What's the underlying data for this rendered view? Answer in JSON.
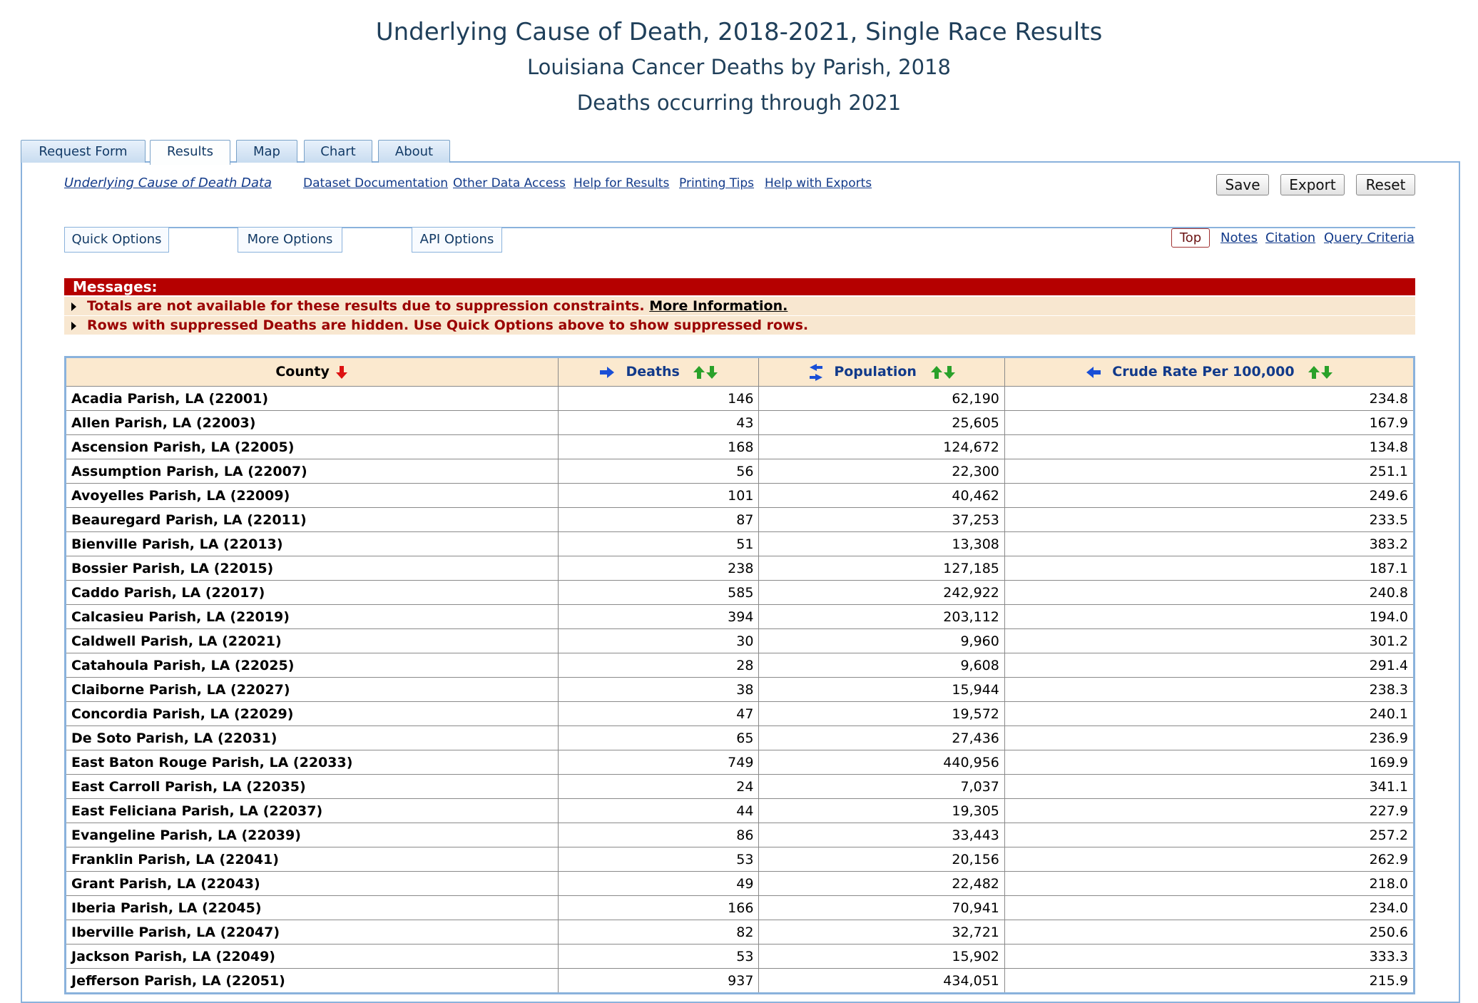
{
  "header": {
    "title": "Underlying Cause of Death, 2018-2021, Single Race Results",
    "subtitle": "Louisiana Cancer Deaths by Parish, 2018",
    "subtitle2": "Deaths occurring through 2021"
  },
  "tabs": [
    "Request Form",
    "Results",
    "Map",
    "Chart",
    "About"
  ],
  "active_tab": "Results",
  "links": {
    "data": "Underlying Cause of Death Data",
    "dataset_doc": "Dataset Documentation",
    "other_access": "Other Data Access",
    "help_results": "Help for Results",
    "printing": "Printing Tips",
    "help_exports": "Help with Exports"
  },
  "buttons": {
    "save": "Save",
    "export": "Export",
    "reset": "Reset"
  },
  "options": {
    "quick": "Quick Options",
    "more": "More Options",
    "api": "API Options"
  },
  "nav": {
    "top": "Top",
    "notes": "Notes",
    "citation": "Citation",
    "query": "Query Criteria"
  },
  "messages": {
    "header": "Messages:",
    "msg1": "Totals are not available for these results due to suppression constraints.",
    "msg1_link": "More Information.",
    "msg2": "Rows with suppressed Deaths are hidden. Use Quick Options above to show suppressed rows."
  },
  "table": {
    "columns": [
      "County",
      "Deaths",
      "Population",
      "Crude Rate Per 100,000"
    ],
    "rows": [
      [
        "Acadia Parish, LA (22001)",
        "146",
        "62,190",
        "234.8"
      ],
      [
        "Allen Parish, LA (22003)",
        "43",
        "25,605",
        "167.9"
      ],
      [
        "Ascension Parish, LA (22005)",
        "168",
        "124,672",
        "134.8"
      ],
      [
        "Assumption Parish, LA (22007)",
        "56",
        "22,300",
        "251.1"
      ],
      [
        "Avoyelles Parish, LA (22009)",
        "101",
        "40,462",
        "249.6"
      ],
      [
        "Beauregard Parish, LA (22011)",
        "87",
        "37,253",
        "233.5"
      ],
      [
        "Bienville Parish, LA (22013)",
        "51",
        "13,308",
        "383.2"
      ],
      [
        "Bossier Parish, LA (22015)",
        "238",
        "127,185",
        "187.1"
      ],
      [
        "Caddo Parish, LA (22017)",
        "585",
        "242,922",
        "240.8"
      ],
      [
        "Calcasieu Parish, LA (22019)",
        "394",
        "203,112",
        "194.0"
      ],
      [
        "Caldwell Parish, LA (22021)",
        "30",
        "9,960",
        "301.2"
      ],
      [
        "Catahoula Parish, LA (22025)",
        "28",
        "9,608",
        "291.4"
      ],
      [
        "Claiborne Parish, LA (22027)",
        "38",
        "15,944",
        "238.3"
      ],
      [
        "Concordia Parish, LA (22029)",
        "47",
        "19,572",
        "240.1"
      ],
      [
        "De Soto Parish, LA (22031)",
        "65",
        "27,436",
        "236.9"
      ],
      [
        "East Baton Rouge Parish, LA (22033)",
        "749",
        "440,956",
        "169.9"
      ],
      [
        "East Carroll Parish, LA (22035)",
        "24",
        "7,037",
        "341.1"
      ],
      [
        "East Feliciana Parish, LA (22037)",
        "44",
        "19,305",
        "227.9"
      ],
      [
        "Evangeline Parish, LA (22039)",
        "86",
        "33,443",
        "257.2"
      ],
      [
        "Franklin Parish, LA (22041)",
        "53",
        "20,156",
        "262.9"
      ],
      [
        "Grant Parish, LA (22043)",
        "49",
        "22,482",
        "218.0"
      ],
      [
        "Iberia Parish, LA (22045)",
        "166",
        "70,941",
        "234.0"
      ],
      [
        "Iberville Parish, LA (22047)",
        "82",
        "32,721",
        "250.6"
      ],
      [
        "Jackson Parish, LA (22049)",
        "53",
        "15,902",
        "333.3"
      ],
      [
        "Jefferson Parish, LA (22051)",
        "937",
        "434,051",
        "215.9"
      ]
    ]
  }
}
